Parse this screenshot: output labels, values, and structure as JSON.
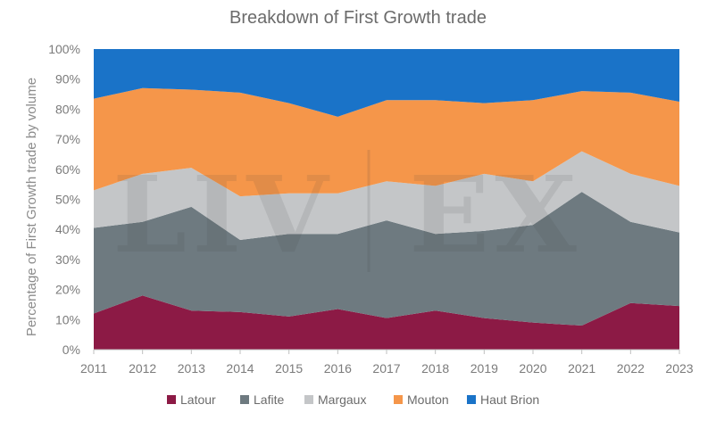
{
  "chart_data": {
    "type": "area",
    "stacked": true,
    "title": "Breakdown of First Growth trade",
    "ylabel": "Percentage of First Growth trade by volume",
    "xlabel": "",
    "x": [
      "2011",
      "2012",
      "2013",
      "2014",
      "2015",
      "2016",
      "2017",
      "2018",
      "2019",
      "2020",
      "2021",
      "2022",
      "2023"
    ],
    "y_ticks": [
      "0%",
      "10%",
      "20%",
      "30%",
      "40%",
      "50%",
      "60%",
      "70%",
      "80%",
      "90%",
      "100%"
    ],
    "ylim": [
      0,
      100
    ],
    "grid": false,
    "legend_position": "bottom",
    "watermark": "LIV-EX",
    "series": [
      {
        "name": "Latour",
        "color": "#8c1a45",
        "values": [
          12,
          18,
          13,
          12.5,
          11,
          13.5,
          10.5,
          13,
          10.5,
          9,
          8,
          15.5,
          14.5
        ]
      },
      {
        "name": "Lafite",
        "color": "#6e7a80",
        "values": [
          28.5,
          24.5,
          34.5,
          24,
          27.5,
          25,
          32.5,
          25.5,
          29,
          32.5,
          44.5,
          27,
          24.5
        ]
      },
      {
        "name": "Margaux",
        "color": "#c4c6c8",
        "values": [
          12.5,
          16,
          13,
          14.5,
          13.5,
          13.5,
          13,
          16,
          19,
          14.5,
          13.5,
          16,
          15.5
        ]
      },
      {
        "name": "Mouton",
        "color": "#f5964a",
        "values": [
          30.5,
          28.5,
          26,
          34.5,
          30,
          25.5,
          27,
          28.5,
          23.5,
          27,
          20,
          27,
          28
        ]
      },
      {
        "name": "Haut Brion",
        "color": "#1a73c8",
        "values": [
          16.5,
          13,
          13.5,
          14.5,
          18,
          22.5,
          17,
          17,
          18,
          17,
          14,
          14.5,
          17.5
        ]
      }
    ]
  }
}
